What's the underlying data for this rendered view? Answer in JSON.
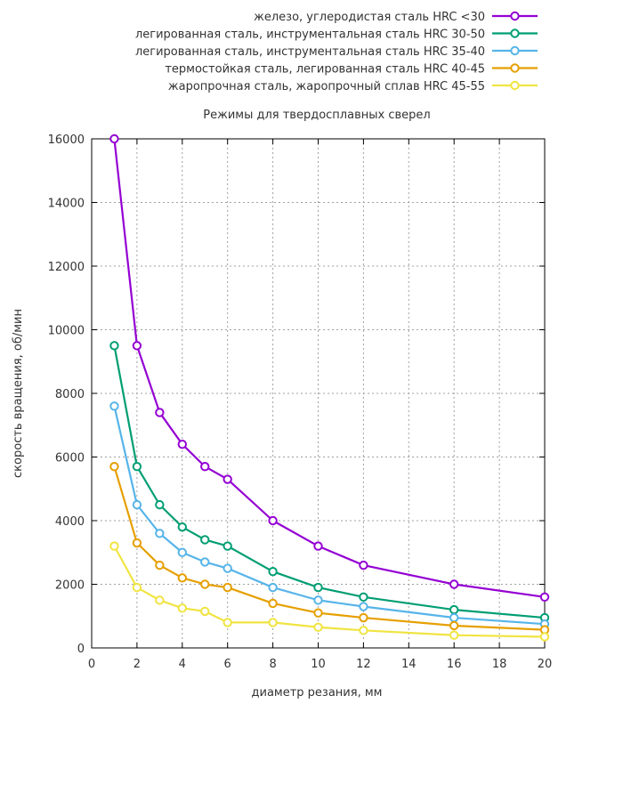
{
  "chart_data": {
    "type": "line",
    "title": "Режимы для твердосплавных сверел",
    "xlabel": "диаметр резания, мм",
    "ylabel": "скорость вращения, об/мин",
    "xlim": [
      0,
      20
    ],
    "ylim": [
      0,
      16000
    ],
    "xticks": [
      0,
      2,
      4,
      6,
      8,
      10,
      12,
      14,
      16,
      18,
      20
    ],
    "yticks": [
      0,
      2000,
      4000,
      6000,
      8000,
      10000,
      12000,
      14000,
      16000
    ],
    "grid": true,
    "legend_position": "top-right",
    "series": [
      {
        "name": "железо, углеродистая сталь HRC <30",
        "color": "#9400d3",
        "x": [
          1,
          2,
          3,
          4,
          5,
          6,
          8,
          10,
          12,
          16,
          20
        ],
        "y": [
          16000,
          9500,
          7400,
          6400,
          5700,
          5300,
          4000,
          3200,
          2600,
          2000,
          1600
        ]
      },
      {
        "name": "легированная сталь, инструментальная сталь HRC 30-50",
        "color": "#009e73",
        "x": [
          1,
          2,
          3,
          4,
          5,
          6,
          8,
          10,
          12,
          16,
          20
        ],
        "y": [
          9500,
          5700,
          4500,
          3800,
          3400,
          3200,
          2400,
          1900,
          1600,
          1200,
          950
        ]
      },
      {
        "name": "легированная сталь, инструментальная сталь HRC 35-40",
        "color": "#56b4e9",
        "x": [
          1,
          2,
          3,
          4,
          5,
          6,
          8,
          10,
          12,
          16,
          20
        ],
        "y": [
          7600,
          4500,
          3600,
          3000,
          2700,
          2500,
          1900,
          1500,
          1300,
          950,
          750
        ]
      },
      {
        "name": "термостойкая сталь, легированная сталь HRC 40-45",
        "color": "#e69f00",
        "x": [
          1,
          2,
          3,
          4,
          5,
          6,
          8,
          10,
          12,
          16,
          20
        ],
        "y": [
          5700,
          3300,
          2600,
          2200,
          2000,
          1900,
          1400,
          1100,
          950,
          700,
          570
        ]
      },
      {
        "name": "жаропрочная сталь, жаропрочный сплав HRC 45-55",
        "color": "#f0e442",
        "x": [
          1,
          2,
          3,
          4,
          5,
          6,
          8,
          10,
          12,
          16,
          20
        ],
        "y": [
          3200,
          1900,
          1500,
          1250,
          1150,
          800,
          800,
          650,
          550,
          400,
          350
        ]
      }
    ]
  }
}
